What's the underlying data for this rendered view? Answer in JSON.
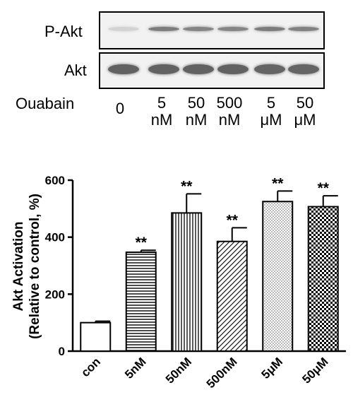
{
  "blot": {
    "rows": [
      {
        "label": "P-Akt",
        "intensities": [
          0.25,
          0.75,
          0.7,
          0.7,
          0.75,
          0.72
        ]
      },
      {
        "label": "Akt",
        "intensities": [
          0.9,
          0.9,
          0.9,
          0.9,
          0.88,
          0.88
        ]
      }
    ],
    "treatment_label": "Ouabain",
    "lanes": [
      {
        "line1": "0",
        "line2": ""
      },
      {
        "line1": "5",
        "line2": "nM"
      },
      {
        "line1": "50",
        "line2": "nM"
      },
      {
        "line1": "500",
        "line2": "nM"
      },
      {
        "line1": "5",
        "line2": "μM"
      },
      {
        "line1": "50",
        "line2": "μM"
      }
    ]
  },
  "chart_data": {
    "type": "bar",
    "title": "",
    "xlabel": "",
    "ylabel": "Akt Activation",
    "ylabel2": "(Relative to control, %)",
    "ylim": [
      0,
      600
    ],
    "yticks": [
      "0",
      "200",
      "400",
      "600"
    ],
    "categories": [
      "con",
      "5nM",
      "50nM",
      "500nM",
      "5μM",
      "50μM"
    ],
    "values": [
      100,
      347,
      485,
      385,
      525,
      507
    ],
    "errors": [
      5,
      7,
      67,
      48,
      37,
      38
    ],
    "significance": [
      "",
      "**",
      "**",
      "**",
      "**",
      "**"
    ],
    "patterns": [
      "none",
      "horizontal",
      "vertical",
      "diagonal",
      "dots",
      "checker"
    ],
    "grid": false
  }
}
